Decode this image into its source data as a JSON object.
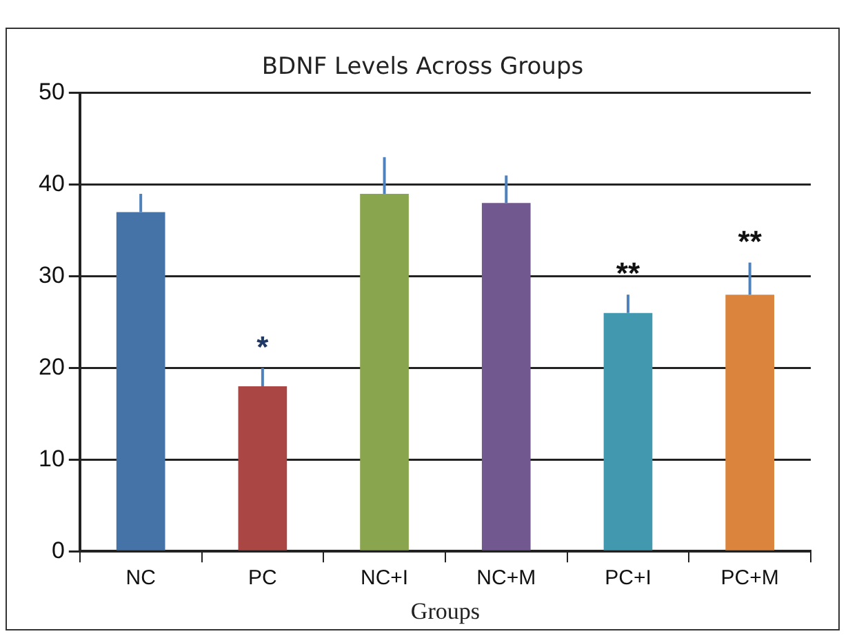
{
  "chart_data": {
    "type": "bar",
    "title": "BDNF Levels Across Groups",
    "xlabel": "Groups",
    "categories": [
      "NC",
      "PC",
      "NC+I",
      "NC+M",
      "PC+I",
      "PC+M"
    ],
    "values": [
      37,
      18,
      39,
      38,
      26,
      28
    ],
    "colors": [
      "#4572a7",
      "#aa4643",
      "#89a54e",
      "#71588f",
      "#4198af",
      "#db843d"
    ],
    "errors": [
      [
        37,
        39
      ],
      [
        18,
        20
      ],
      [
        39,
        43
      ],
      [
        38,
        41
      ],
      [
        26,
        28
      ],
      [
        28,
        31.5
      ]
    ],
    "annotations": [
      {
        "text": "*",
        "x": "PC",
        "y": 20
      },
      {
        "text": "**",
        "x": "PC+I",
        "y": 28
      },
      {
        "text": "**",
        "x": "PC+M",
        "y": 31.5
      }
    ],
    "ylim": [
      0,
      50
    ],
    "yticks": [
      0,
      10,
      20,
      30,
      40,
      50
    ],
    "grid": "y",
    "legend": false
  }
}
